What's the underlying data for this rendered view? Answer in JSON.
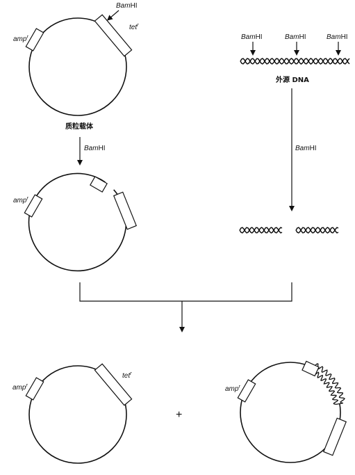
{
  "labels": {
    "amp_main": "amp",
    "tet_main": "tet",
    "r_sup": "r",
    "bamhi_italic": "Bam",
    "bamhi_rest": "HI",
    "plasmid_vector": "质粒载体",
    "foreign_dna": "外源 DNA",
    "plus": "+"
  },
  "colors": {
    "line": "#111111",
    "background": "#ffffff"
  }
}
